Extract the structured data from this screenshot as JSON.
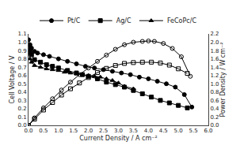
{
  "chart_data": {
    "type": "line",
    "xlabel": "Current Density / A cm⁻²",
    "ylabel": "Cell Voltage / V",
    "y2label": "Power Density / W cm⁻²",
    "xlim": [
      0.0,
      6.0
    ],
    "ylim": [
      0.0,
      1.1
    ],
    "y2lim": [
      0.0,
      2.2
    ],
    "xticks": [
      {
        "value": 0.0,
        "label": "0.0"
      },
      {
        "value": 0.5,
        "label": "0.5"
      },
      {
        "value": 1.0,
        "label": "1.0"
      },
      {
        "value": 1.5,
        "label": "1.5"
      },
      {
        "value": 2.0,
        "label": "2.0"
      },
      {
        "value": 2.5,
        "label": "2.5"
      },
      {
        "value": 3.0,
        "label": "3.0"
      },
      {
        "value": 3.5,
        "label": "3.5"
      },
      {
        "value": 4.0,
        "label": "4.0"
      },
      {
        "value": 4.5,
        "label": "4.5"
      },
      {
        "value": 5.0,
        "label": "5.0"
      },
      {
        "value": 5.5,
        "label": "5.5"
      },
      {
        "value": 6.0,
        "label": "6.0"
      }
    ],
    "yticks": [
      {
        "value": 0.0,
        "label": "0.0"
      },
      {
        "value": 0.1,
        "label": "0.1"
      },
      {
        "value": 0.2,
        "label": "0.2"
      },
      {
        "value": 0.3,
        "label": "0.3"
      },
      {
        "value": 0.4,
        "label": "0.4"
      },
      {
        "value": 0.5,
        "label": "0.5"
      },
      {
        "value": 0.6,
        "label": "0.6"
      },
      {
        "value": 0.7,
        "label": "0.7"
      },
      {
        "value": 0.8,
        "label": "0.8"
      },
      {
        "value": 0.9,
        "label": "0.9"
      },
      {
        "value": 1.0,
        "label": "1.0"
      },
      {
        "value": 1.1,
        "label": "1.1"
      }
    ],
    "y2ticks": [
      {
        "value": 0.0,
        "label": "0.0"
      },
      {
        "value": 0.2,
        "label": "0.2"
      },
      {
        "value": 0.4,
        "label": "0.4"
      },
      {
        "value": 0.6,
        "label": "0.6"
      },
      {
        "value": 0.8,
        "label": "0.8"
      },
      {
        "value": 1.0,
        "label": "1.0"
      },
      {
        "value": 1.2,
        "label": "1.2"
      },
      {
        "value": 1.4,
        "label": "1.4"
      },
      {
        "value": 1.6,
        "label": "1.6"
      },
      {
        "value": 1.8,
        "label": "1.8"
      },
      {
        "value": 2.0,
        "label": "2.0"
      },
      {
        "value": 2.2,
        "label": "2.2"
      }
    ],
    "grid": false,
    "legend": "top",
    "series": [
      {
        "name": "Pt/C",
        "color": "black",
        "marker": "circle",
        "line_style": "solid",
        "x": [
          0.0,
          0.05,
          0.1,
          0.2,
          0.3,
          0.5,
          0.7,
          1.0,
          1.3,
          1.6,
          1.9,
          2.2,
          2.5,
          2.8,
          3.1,
          3.4,
          3.7,
          4.0,
          4.3,
          4.6,
          4.9,
          5.2,
          5.45
        ],
        "values": [
          1.03,
          0.97,
          0.93,
          0.89,
          0.87,
          0.85,
          0.83,
          0.8,
          0.77,
          0.74,
          0.71,
          0.69,
          0.67,
          0.65,
          0.63,
          0.61,
          0.58,
          0.56,
          0.53,
          0.5,
          0.46,
          0.37,
          0.22
        ]
      },
      {
        "name": "Ag/C",
        "color": "black",
        "marker": "square",
        "line_style": "solid",
        "x": [
          0.0,
          0.05,
          0.1,
          0.2,
          0.4,
          0.6,
          0.8,
          1.0,
          1.3,
          1.6,
          1.8,
          2.0,
          2.3,
          2.6,
          2.9,
          3.2,
          3.5,
          3.8,
          4.1,
          4.4,
          4.7,
          5.0,
          5.3
        ],
        "values": [
          0.96,
          0.9,
          0.85,
          0.79,
          0.76,
          0.73,
          0.71,
          0.69,
          0.66,
          0.63,
          0.61,
          0.59,
          0.56,
          0.52,
          0.49,
          0.46,
          0.42,
          0.38,
          0.34,
          0.3,
          0.27,
          0.24,
          0.21
        ]
      },
      {
        "name": "FeCoPc/C",
        "color": "black",
        "marker": "triangle-up",
        "line_style": "solid",
        "x": [
          0.0,
          0.05,
          0.1,
          0.2,
          0.4,
          0.6,
          0.8,
          1.0,
          1.2,
          1.4,
          1.6,
          1.8,
          2.0,
          2.2,
          2.4,
          2.6,
          2.8,
          3.0,
          3.2,
          3.5
        ],
        "values": [
          0.87,
          0.8,
          0.76,
          0.72,
          0.7,
          0.68,
          0.67,
          0.66,
          0.64,
          0.63,
          0.62,
          0.61,
          0.6,
          0.59,
          0.58,
          0.56,
          0.54,
          0.51,
          0.47,
          0.44
        ]
      },
      {
        "axis": "y2",
        "color": "black",
        "marker": "circle-open",
        "line_style": "solid",
        "x": [
          0.0,
          0.2,
          0.5,
          0.8,
          1.1,
          1.4,
          1.7,
          2.0,
          2.3,
          2.6,
          2.9,
          3.2,
          3.5,
          3.8,
          4.0,
          4.2,
          4.5,
          4.8,
          5.1,
          5.4
        ],
        "values": [
          0.0,
          0.18,
          0.42,
          0.64,
          0.85,
          1.04,
          1.22,
          1.38,
          1.54,
          1.69,
          1.83,
          1.94,
          2.0,
          2.02,
          2.03,
          2.02,
          1.97,
          1.85,
          1.65,
          1.18
        ]
      },
      {
        "axis": "y2",
        "color": "black",
        "marker": "square-open",
        "line_style": "solid",
        "x": [
          0.0,
          0.2,
          0.5,
          0.8,
          1.1,
          1.4,
          1.7,
          2.0,
          2.3,
          2.6,
          2.9,
          3.2,
          3.5,
          3.8,
          4.1,
          4.4,
          4.7,
          5.0,
          5.3
        ],
        "values": [
          0.0,
          0.15,
          0.37,
          0.55,
          0.73,
          0.88,
          1.02,
          1.15,
          1.27,
          1.37,
          1.44,
          1.49,
          1.51,
          1.52,
          1.52,
          1.5,
          1.45,
          1.36,
          1.25
        ]
      }
    ]
  }
}
